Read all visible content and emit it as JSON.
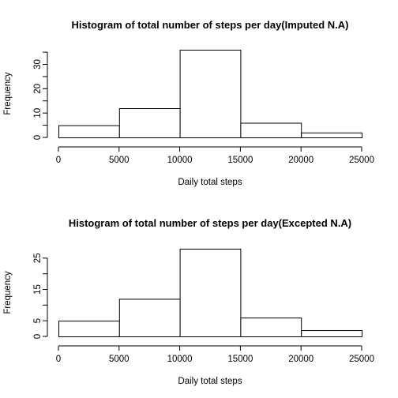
{
  "chart_data": [
    {
      "type": "bar",
      "title": "Histogram of total number of steps per day(Imputed N.A)",
      "xlabel": "Daily total steps",
      "ylabel": "Frequency",
      "bins": [
        [
          0,
          5000
        ],
        [
          5000,
          10000
        ],
        [
          10000,
          15000
        ],
        [
          15000,
          20000
        ],
        [
          20000,
          25000
        ]
      ],
      "values": [
        5,
        12,
        36,
        6,
        2
      ],
      "xlim": [
        0,
        25000
      ],
      "ylim": [
        0,
        36
      ],
      "x_ticks": [
        0,
        5000,
        10000,
        15000,
        20000,
        25000
      ],
      "y_ticks": [
        0,
        10,
        20,
        30
      ],
      "grid": false,
      "legend": "none"
    },
    {
      "type": "bar",
      "title": "Histogram of total number of steps per day(Excepted N.A)",
      "xlabel": "Daily total steps",
      "ylabel": "Frequency",
      "bins": [
        [
          0,
          5000
        ],
        [
          5000,
          10000
        ],
        [
          10000,
          15000
        ],
        [
          15000,
          20000
        ],
        [
          20000,
          25000
        ]
      ],
      "values": [
        5,
        12,
        28,
        6,
        2
      ],
      "xlim": [
        0,
        25000
      ],
      "ylim": [
        0,
        28
      ],
      "x_ticks": [
        0,
        5000,
        10000,
        15000,
        20000,
        25000
      ],
      "y_ticks": [
        0,
        5,
        15,
        25
      ],
      "grid": false,
      "legend": "none"
    }
  ]
}
